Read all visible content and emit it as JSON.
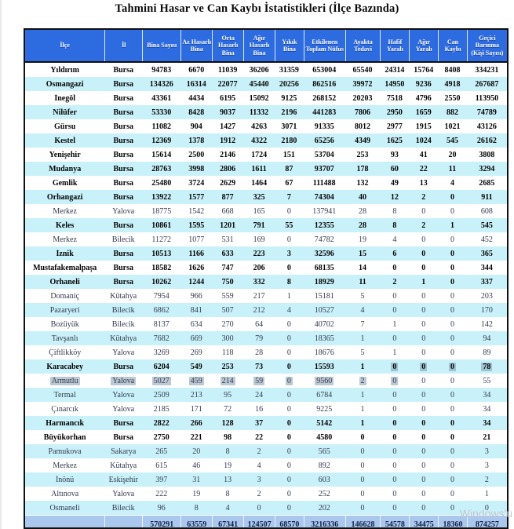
{
  "title": "Tahmini Hasar ve Can Kaybı İstatistikleri (İlçe Bazında)",
  "watermark": "Windows'u",
  "colors": {
    "header_bg": "#2d6be0",
    "stripe_bg": "#c9f1fa",
    "totals_bg": "#aac7ee",
    "border": "#101010",
    "selection": "#7b93a6"
  },
  "columns": [
    "İlçe",
    "İl",
    "Bina Sayısı",
    "Az Hasarlı Bina",
    "Orta Hasarlı Bina",
    "Ağır Hasarlı Bina",
    "Yıkık Bina",
    "Etkilenen Toplam Nüfus",
    "Ayakta Tedavi",
    "Hafif Yaralı",
    "Ağır Yaralı",
    "Can Kaybı",
    "Geçici Barınma (Kişi Sayısı)"
  ],
  "rows": [
    {
      "ilce": "Yıldırım",
      "il": "Bursa",
      "bold": true,
      "values": [
        94783,
        6670,
        11039,
        36206,
        31359,
        653004,
        65540,
        24314,
        15764,
        8408,
        334231
      ]
    },
    {
      "ilce": "Osmangazi",
      "il": "Bursa",
      "bold": true,
      "values": [
        134326,
        16314,
        22077,
        45440,
        20256,
        862516,
        39972,
        14950,
        9236,
        4918,
        267687
      ]
    },
    {
      "ilce": "İnegöl",
      "il": "Bursa",
      "bold": true,
      "values": [
        43361,
        4434,
        6195,
        15092,
        9125,
        268152,
        20203,
        7518,
        4796,
        2550,
        113950
      ]
    },
    {
      "ilce": "Nilüfer",
      "il": "Bursa",
      "bold": true,
      "values": [
        53330,
        8428,
        9037,
        11332,
        2196,
        441283,
        7806,
        2950,
        1659,
        882,
        74789
      ]
    },
    {
      "ilce": "Gürsu",
      "il": "Bursa",
      "bold": true,
      "values": [
        11082,
        904,
        1427,
        4263,
        3071,
        91335,
        8012,
        2977,
        1915,
        1021,
        43126
      ]
    },
    {
      "ilce": "Kestel",
      "il": "Bursa",
      "bold": true,
      "values": [
        12369,
        1378,
        1912,
        4322,
        2180,
        65256,
        4349,
        1625,
        1024,
        545,
        26162
      ]
    },
    {
      "ilce": "Yenişehir",
      "il": "Bursa",
      "bold": true,
      "values": [
        15614,
        2500,
        2146,
        1724,
        151,
        53704,
        253,
        93,
        41,
        20,
        3808
      ]
    },
    {
      "ilce": "Mudanya",
      "il": "Bursa",
      "bold": true,
      "values": [
        28763,
        3998,
        2806,
        1611,
        87,
        93707,
        178,
        60,
        22,
        11,
        3294
      ]
    },
    {
      "ilce": "Gemlik",
      "il": "Bursa",
      "bold": true,
      "values": [
        25480,
        3724,
        2629,
        1464,
        67,
        111488,
        132,
        49,
        13,
        4,
        2685
      ]
    },
    {
      "ilce": "Orhangazi",
      "il": "Bursa",
      "bold": true,
      "values": [
        13922,
        1577,
        877,
        325,
        7,
        74304,
        40,
        12,
        2,
        0,
        911
      ]
    },
    {
      "ilce": "Merkez",
      "il": "Yalova",
      "bold": false,
      "values": [
        18775,
        1542,
        668,
        165,
        0,
        137941,
        28,
        8,
        0,
        0,
        608
      ]
    },
    {
      "ilce": "Keles",
      "il": "Bursa",
      "bold": true,
      "values": [
        10861,
        1595,
        1201,
        791,
        55,
        12355,
        28,
        8,
        2,
        1,
        545
      ]
    },
    {
      "ilce": "Merkez",
      "il": "Bilecik",
      "bold": false,
      "values": [
        11272,
        1077,
        531,
        169,
        0,
        74782,
        19,
        4,
        0,
        0,
        452
      ]
    },
    {
      "ilce": "İznik",
      "il": "Bursa",
      "bold": true,
      "values": [
        10513,
        1166,
        633,
        223,
        3,
        32596,
        15,
        6,
        0,
        0,
        365
      ]
    },
    {
      "ilce": "Mustafakemalpaşa",
      "il": "Bursa",
      "bold": true,
      "values": [
        18582,
        1626,
        747,
        206,
        0,
        68135,
        14,
        0,
        0,
        0,
        344
      ]
    },
    {
      "ilce": "Orhaneli",
      "il": "Bursa",
      "bold": true,
      "values": [
        10262,
        1244,
        750,
        332,
        8,
        18929,
        11,
        2,
        1,
        0,
        337
      ]
    },
    {
      "ilce": "Domaniç",
      "il": "Kütahya",
      "bold": false,
      "values": [
        7954,
        966,
        559,
        217,
        1,
        15181,
        5,
        0,
        0,
        0,
        203
      ]
    },
    {
      "ilce": "Pazaryeri",
      "il": "Bilecik",
      "bold": false,
      "values": [
        6862,
        841,
        507,
        212,
        4,
        10527,
        4,
        0,
        0,
        0,
        170
      ]
    },
    {
      "ilce": "Bozüyük",
      "il": "Bilecik",
      "bold": false,
      "values": [
        8137,
        634,
        270,
        64,
        0,
        40702,
        7,
        1,
        0,
        0,
        142
      ]
    },
    {
      "ilce": "Tavşanlı",
      "il": "Kütahya",
      "bold": false,
      "values": [
        7682,
        669,
        300,
        79,
        0,
        18365,
        1,
        0,
        0,
        0,
        94
      ]
    },
    {
      "ilce": "Çiftlikköy",
      "il": "Yalova",
      "bold": false,
      "values": [
        3269,
        269,
        118,
        28,
        0,
        18676,
        5,
        1,
        0,
        0,
        89
      ]
    },
    {
      "ilce": "Karacabey",
      "il": "Bursa",
      "bold": true,
      "values": [
        6204,
        549,
        253,
        73,
        0,
        15593,
        1,
        0,
        0,
        0,
        78
      ],
      "selected": [
        9,
        10,
        11,
        12
      ]
    },
    {
      "ilce": "Armutlu",
      "il": "Yalova",
      "bold": false,
      "values": [
        5027,
        459,
        214,
        59,
        0,
        9560,
        2,
        0,
        0,
        0,
        55
      ],
      "selected": [
        0,
        1,
        2,
        3,
        4,
        5,
        6,
        7,
        8,
        9
      ]
    },
    {
      "ilce": "Termal",
      "il": "Yalova",
      "bold": false,
      "values": [
        2509,
        213,
        95,
        24,
        0,
        6784,
        1,
        0,
        0,
        0,
        34
      ]
    },
    {
      "ilce": "Çınarcık",
      "il": "Yalova",
      "bold": false,
      "values": [
        2185,
        171,
        72,
        16,
        0,
        9225,
        1,
        0,
        0,
        0,
        34
      ]
    },
    {
      "ilce": "Harmancık",
      "il": "Bursa",
      "bold": true,
      "values": [
        2822,
        266,
        128,
        37,
        0,
        5142,
        1,
        0,
        0,
        0,
        34
      ]
    },
    {
      "ilce": "Büyükorhan",
      "il": "Bursa",
      "bold": true,
      "values": [
        2750,
        221,
        98,
        22,
        0,
        4580,
        0,
        0,
        0,
        0,
        21
      ]
    },
    {
      "ilce": "Pamukova",
      "il": "Sakarya",
      "bold": false,
      "values": [
        265,
        20,
        8,
        2,
        0,
        565,
        0,
        0,
        0,
        0,
        3
      ]
    },
    {
      "ilce": "Merkez",
      "il": "Kütahya",
      "bold": false,
      "values": [
        615,
        46,
        19,
        4,
        0,
        892,
        0,
        0,
        0,
        0,
        3
      ]
    },
    {
      "ilce": "İnönü",
      "il": "Eskişehir",
      "bold": false,
      "values": [
        397,
        31,
        13,
        3,
        0,
        603,
        0,
        0,
        0,
        0,
        2
      ]
    },
    {
      "ilce": "Altınova",
      "il": "Yalova",
      "bold": false,
      "values": [
        222,
        19,
        8,
        2,
        0,
        252,
        0,
        0,
        0,
        0,
        1
      ]
    },
    {
      "ilce": "Osmaneli",
      "il": "Bilecik",
      "bold": false,
      "values": [
        96,
        8,
        4,
        0,
        0,
        202,
        0,
        0,
        0,
        0,
        0
      ]
    }
  ],
  "totals": [
    "",
    "",
    "570291",
    "63559",
    "67341",
    "124507",
    "68570",
    "3216336",
    "146628",
    "54578",
    "34475",
    "18360",
    "874257"
  ]
}
